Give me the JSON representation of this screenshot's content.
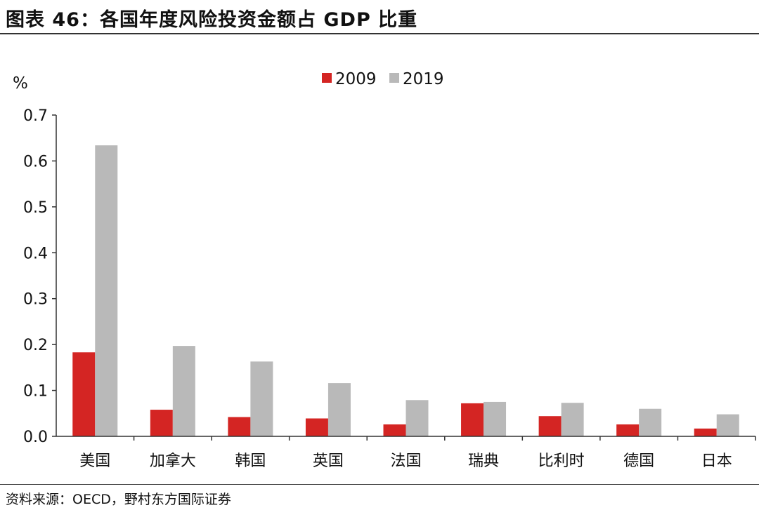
{
  "title": "图表 46：各国年度风险投资金额占 GDP 比重",
  "source": "资料来源：OECD，野村东方国际证券",
  "colors": {
    "series_2009": "#d42523",
    "series_2019": "#b9b9b9",
    "axis": "#333333"
  },
  "chart_data": {
    "type": "bar",
    "title": "各国年度风险投资金额占 GDP 比重",
    "xlabel": "",
    "ylabel": "%",
    "ylim": [
      0,
      0.7
    ],
    "yticks": [
      "0.0",
      "0.1",
      "0.2",
      "0.3",
      "0.4",
      "0.5",
      "0.6",
      "0.7"
    ],
    "legend_position": "top-center",
    "grid": false,
    "categories": [
      "美国",
      "加拿大",
      "韩国",
      "英国",
      "法国",
      "瑞典",
      "比利时",
      "德国",
      "日本"
    ],
    "series": [
      {
        "name": "2009",
        "values": [
          0.183,
          0.058,
          0.042,
          0.039,
          0.026,
          0.072,
          0.044,
          0.026,
          0.017
        ]
      },
      {
        "name": "2019",
        "values": [
          0.634,
          0.197,
          0.163,
          0.116,
          0.079,
          0.075,
          0.073,
          0.06,
          0.048
        ]
      }
    ]
  }
}
